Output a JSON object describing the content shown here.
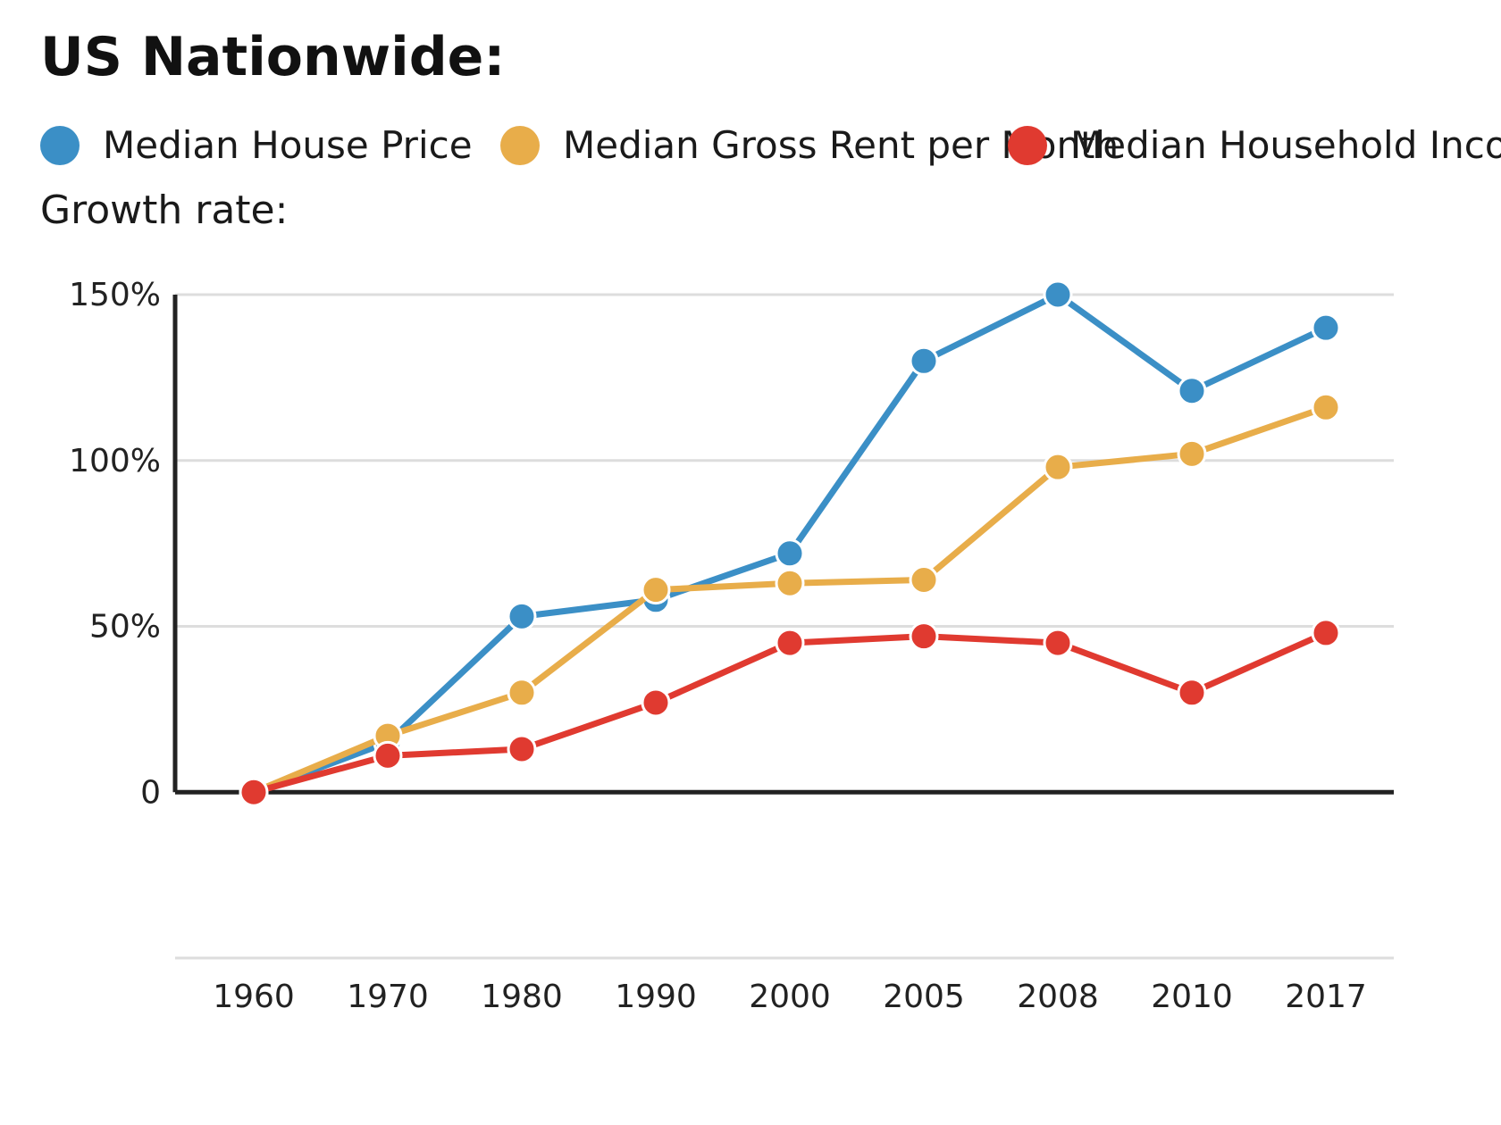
{
  "header": {
    "title": "US Nationwide:",
    "subtitle": "Growth rate:"
  },
  "colors": {
    "house": "#3b8fc6",
    "rent": "#e8ad4a",
    "income": "#e03a30",
    "grid": "#dddddd",
    "axis": "#222222"
  },
  "chart_data": {
    "type": "line",
    "x": [
      "1960",
      "1970",
      "1980",
      "1990",
      "2000",
      "2005",
      "2008",
      "2010",
      "2017"
    ],
    "ylim": [
      -50,
      150
    ],
    "yticks": [
      0,
      50,
      100,
      150
    ],
    "ytick_labels": [
      "0",
      "50%",
      "100%",
      "150%"
    ],
    "grid": true,
    "legend_position": "top-left",
    "series": [
      {
        "name": "Median House Price",
        "color": "#3b8fc6",
        "values": [
          0,
          15,
          53,
          58,
          72,
          130,
          150,
          121,
          140
        ]
      },
      {
        "name": "Median Gross Rent per Month",
        "color": "#e8ad4a",
        "values": [
          0,
          17,
          30,
          61,
          63,
          64,
          98,
          102,
          116
        ]
      },
      {
        "name": "Median Household Income",
        "color": "#e03a30",
        "values": [
          0,
          11,
          13,
          27,
          45,
          47,
          45,
          30,
          48
        ]
      }
    ]
  }
}
